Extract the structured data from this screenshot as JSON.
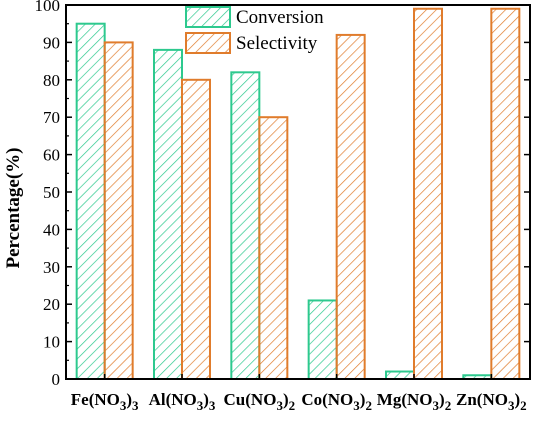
{
  "chart_data": {
    "type": "bar",
    "title": "",
    "xlabel": "",
    "ylabel": "Percentage(%)",
    "ylim": [
      0,
      100
    ],
    "yticks": [
      0,
      10,
      20,
      30,
      40,
      50,
      60,
      70,
      80,
      90,
      100
    ],
    "categories": [
      {
        "base": "Fe(NO",
        "sub": "3",
        "close": ")",
        "sub2": "3"
      },
      {
        "base": "Al(NO",
        "sub": "3",
        "close": ")",
        "sub2": "3"
      },
      {
        "base": "Cu(NO",
        "sub": "3",
        "close": ")",
        "sub2": "2"
      },
      {
        "base": "Co(NO",
        "sub": "3",
        "close": ")",
        "sub2": "2"
      },
      {
        "base": "Mg(NO",
        "sub": "3",
        "close": ")",
        "sub2": "2"
      },
      {
        "base": "Zn(NO",
        "sub": "3",
        "close": ")",
        "sub2": "2"
      }
    ],
    "series": [
      {
        "name": "Conversion",
        "color": "#2dc98e",
        "values": [
          95,
          88,
          82,
          21,
          2,
          1
        ]
      },
      {
        "name": "Selectivity",
        "color": "#e07c2c",
        "values": [
          90,
          80,
          70,
          92,
          99,
          99
        ]
      }
    ],
    "legend_position": "top-center",
    "grid": false
  }
}
